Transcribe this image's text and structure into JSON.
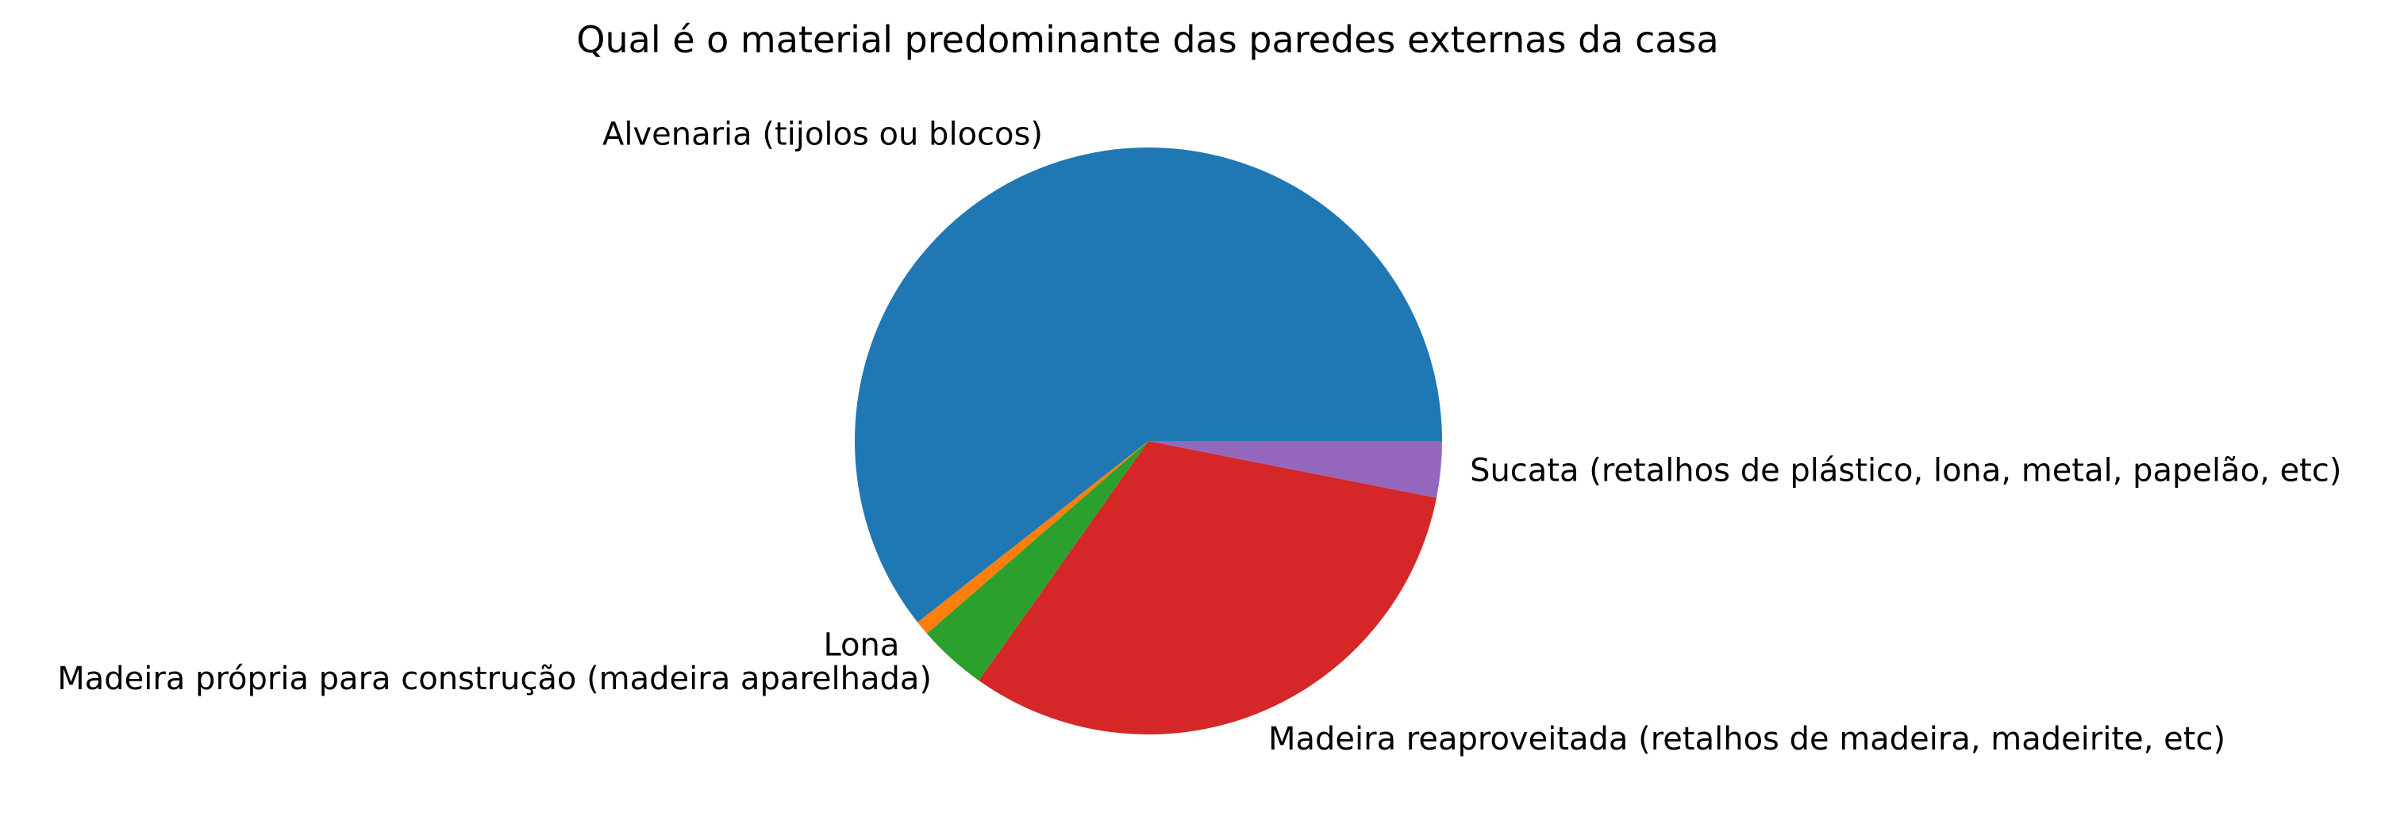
{
  "chart_data": {
    "type": "pie",
    "title": "Qual é o material predominante das paredes externas da casa",
    "start_angle_deg": 0,
    "direction": "counterclockwise",
    "slices": [
      {
        "label": "Alvenaria (tijolos ou blocos)",
        "value": 60.6,
        "color": "#1f77b4"
      },
      {
        "label": "Lona",
        "value": 0.8,
        "color": "#ff7f0e"
      },
      {
        "label": "Madeira própria para construção (madeira aparelhada)",
        "value": 3.8,
        "color": "#2ca02c"
      },
      {
        "label": "Madeira reaproveitada (retalhos de madeira, madeirite, etc)",
        "value": 31.7,
        "color": "#d62728"
      },
      {
        "label": "Sucata (retalhos de plástico, lona, metal, papelão, etc)",
        "value": 3.1,
        "color": "#9467bd"
      }
    ]
  }
}
